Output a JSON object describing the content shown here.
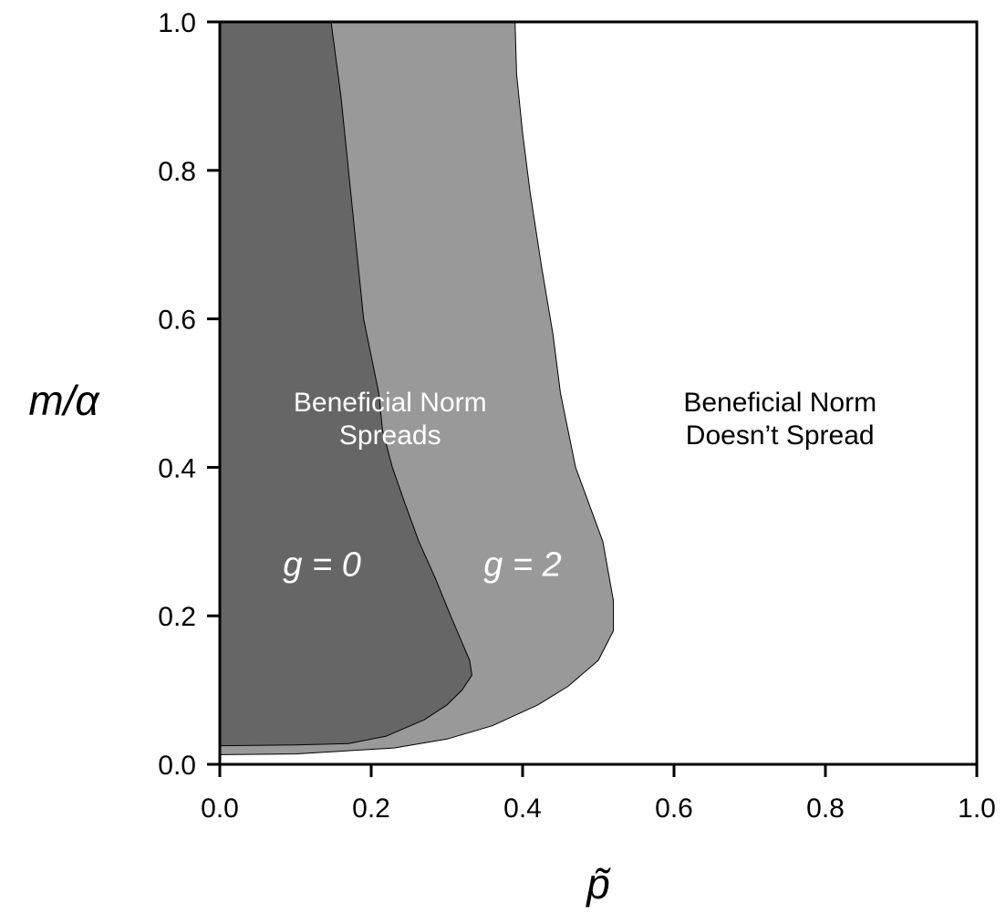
{
  "chart_data": {
    "type": "area",
    "title": "",
    "xlabel": "p̃",
    "ylabel": "m/α",
    "xlim": [
      0.0,
      1.0
    ],
    "ylim": [
      0.0,
      1.0
    ],
    "xticks": [
      "0.0",
      "0.2",
      "0.4",
      "0.6",
      "0.8",
      "1.0"
    ],
    "yticks": [
      "0.0",
      "0.2",
      "0.4",
      "0.6",
      "0.8",
      "1.0"
    ],
    "grid": false,
    "series": [
      {
        "name": "g = 2",
        "color": "#999999",
        "boundary": [
          [
            0.0,
            0.013
          ],
          [
            0.1,
            0.014
          ],
          [
            0.23,
            0.022
          ],
          [
            0.3,
            0.034
          ],
          [
            0.36,
            0.052
          ],
          [
            0.42,
            0.08
          ],
          [
            0.46,
            0.105
          ],
          [
            0.5,
            0.14
          ],
          [
            0.52,
            0.18
          ],
          [
            0.52,
            0.22
          ],
          [
            0.506,
            0.3
          ],
          [
            0.488,
            0.35
          ],
          [
            0.47,
            0.4
          ],
          [
            0.46,
            0.45
          ],
          [
            0.45,
            0.5
          ],
          [
            0.44,
            0.58
          ],
          [
            0.425,
            0.67
          ],
          [
            0.41,
            0.77
          ],
          [
            0.4,
            0.85
          ],
          [
            0.392,
            0.93
          ],
          [
            0.39,
            1.0
          ]
        ]
      },
      {
        "name": "g = 0",
        "color": "#666666",
        "boundary": [
          [
            0.0,
            0.025
          ],
          [
            0.1,
            0.026
          ],
          [
            0.17,
            0.028
          ],
          [
            0.22,
            0.038
          ],
          [
            0.27,
            0.06
          ],
          [
            0.3,
            0.08
          ],
          [
            0.32,
            0.1
          ],
          [
            0.333,
            0.12
          ],
          [
            0.33,
            0.14
          ],
          [
            0.305,
            0.2
          ],
          [
            0.285,
            0.25
          ],
          [
            0.263,
            0.3
          ],
          [
            0.245,
            0.35
          ],
          [
            0.228,
            0.4
          ],
          [
            0.215,
            0.45
          ],
          [
            0.21,
            0.5
          ],
          [
            0.2,
            0.55
          ],
          [
            0.19,
            0.6
          ],
          [
            0.18,
            0.7
          ],
          [
            0.17,
            0.8
          ],
          [
            0.16,
            0.9
          ],
          [
            0.147,
            1.0
          ]
        ]
      }
    ],
    "annotations": [
      {
        "id": "spreads",
        "lines": [
          "Beneficial Norm",
          "Spreads"
        ],
        "x": 0.225,
        "y": 0.47,
        "color": "#ffffff"
      },
      {
        "id": "not-spread",
        "lines": [
          "Beneficial Norm",
          "Doesn’t Spread"
        ],
        "x": 0.74,
        "y": 0.47,
        "color": "#000000"
      },
      {
        "id": "g0",
        "lines": [
          "g = 0"
        ],
        "x": 0.135,
        "y": 0.27,
        "color": "#ffffff",
        "italic": true
      },
      {
        "id": "g2",
        "lines": [
          "g = 2"
        ],
        "x": 0.4,
        "y": 0.27,
        "color": "#ffffff",
        "italic": true
      }
    ]
  }
}
